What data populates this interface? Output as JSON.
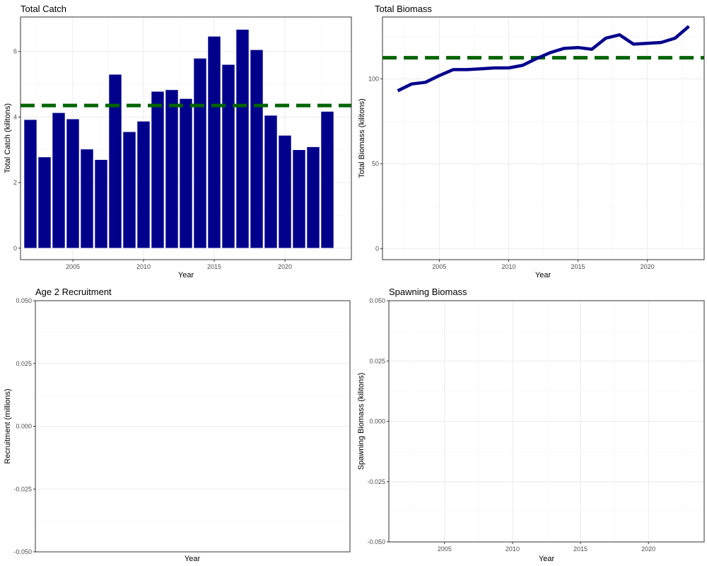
{
  "chart_data": [
    {
      "id": "catch",
      "type": "bar",
      "title": "Total Catch",
      "xlabel": "Year",
      "ylabel": "Total Catch (kilitons)",
      "x": [
        2002,
        2003,
        2004,
        2005,
        2006,
        2007,
        2008,
        2009,
        2010,
        2011,
        2012,
        2013,
        2014,
        2015,
        2016,
        2017,
        2018,
        2019,
        2020,
        2021,
        2022,
        2023
      ],
      "values": [
        3.92,
        2.78,
        4.13,
        3.94,
        3.02,
        2.7,
        5.3,
        3.55,
        3.87,
        4.78,
        4.83,
        4.56,
        5.79,
        6.46,
        5.6,
        6.67,
        6.05,
        4.05,
        3.44,
        3.0,
        3.09,
        4.17
      ],
      "reference_line": 4.35,
      "xlim": [
        2001.3,
        2024.7
      ],
      "ylim": [
        -0.35,
        7.05
      ],
      "xticks": [
        2005,
        2010,
        2015,
        2020
      ],
      "yticks": [
        0,
        2,
        4,
        6
      ],
      "grid": true,
      "colors": {
        "bar": "#00008B",
        "bar_border": "#ffffff",
        "reference": "#006400"
      }
    },
    {
      "id": "biomass",
      "type": "line",
      "title": "Total Biomass",
      "xlabel": "Year",
      "ylabel": "Total Biomass (kilitons)",
      "x": [
        2002,
        2003,
        2004,
        2005,
        2006,
        2007,
        2008,
        2009,
        2010,
        2011,
        2012,
        2013,
        2014,
        2015,
        2016,
        2017,
        2018,
        2019,
        2020,
        2021,
        2022,
        2023
      ],
      "values": [
        93,
        97,
        98,
        102,
        105.5,
        105.5,
        106,
        106.5,
        106.5,
        108,
        112,
        115.5,
        118,
        118.5,
        117.5,
        124,
        126,
        120.5,
        121,
        121.5,
        124,
        131
      ],
      "reference_line": 112.5,
      "xlim": [
        2000.9,
        2024.1
      ],
      "ylim": [
        -6.5,
        136.5
      ],
      "xticks": [
        2005,
        2010,
        2015,
        2020
      ],
      "yticks": [
        0,
        50,
        100
      ],
      "grid": true,
      "colors": {
        "line": "#00008B",
        "reference": "#006400"
      }
    },
    {
      "id": "recruitment",
      "type": "line",
      "title": "Age 2 Recruitment",
      "xlabel": "Year",
      "ylabel": "Recruitment (millions)",
      "x": [],
      "values": [],
      "ylim": [
        -0.05,
        0.05
      ],
      "yticks": [
        -0.05,
        -0.025,
        0.0,
        0.025,
        0.05
      ],
      "ytick_labels": [
        "-0.050",
        "-0.025",
        "0.000",
        "0.025",
        "0.050"
      ],
      "xticks": [],
      "grid": true
    },
    {
      "id": "spawning",
      "type": "line",
      "title": "Spawning Biomass",
      "xlabel": "Year",
      "ylabel": "Spawning Biomass (kilitons)",
      "x": [],
      "values": [],
      "xlim": [
        2000.9,
        2024.1
      ],
      "ylim": [
        -0.05,
        0.05
      ],
      "xticks": [
        2005,
        2010,
        2015,
        2020
      ],
      "yticks": [
        -0.05,
        -0.025,
        0.0,
        0.025,
        0.05
      ],
      "ytick_labels": [
        "-0.050",
        "-0.025",
        "0.000",
        "0.025",
        "0.050"
      ],
      "grid": true
    }
  ]
}
